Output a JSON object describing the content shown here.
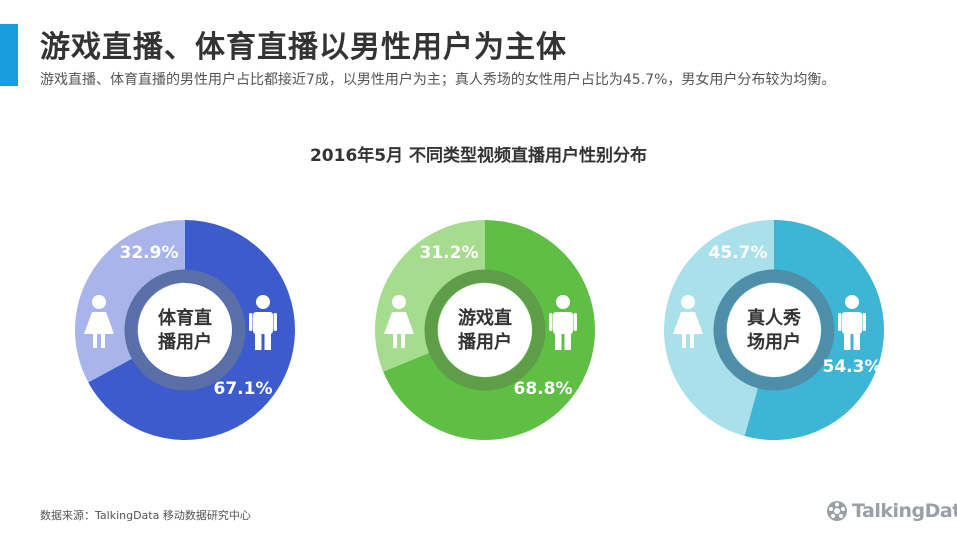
{
  "header": {
    "title": "游戏直播、体育直播以男性用户为主体",
    "subtitle": "游戏直播、体育直播的男性用户占比都接近7成，以男性用户为主；真人秀场的女性用户占比为45.7%，男女用户分布较为均衡。"
  },
  "footer": {
    "source": "数据来源：TalkingData 移动数据研究中心",
    "logo_text": "TalkingData"
  },
  "chart_data": {
    "title": "2016年5月  不同类型视频直播用户性别分布",
    "type": "pie",
    "charts": [
      {
        "label": [
          "体育直",
          "播用户"
        ],
        "slices": [
          {
            "name": "female",
            "value": 32.9,
            "label": "32.9%",
            "color": "#a9b5ea"
          },
          {
            "name": "male",
            "value": 67.1,
            "label": "67.1%",
            "color": "#3c5bcd"
          }
        ],
        "ring_color": "#5a6fa8"
      },
      {
        "label": [
          "游戏直",
          "播用户"
        ],
        "slices": [
          {
            "name": "female",
            "value": 31.2,
            "label": "31.2%",
            "color": "#a6dc8d"
          },
          {
            "name": "male",
            "value": 68.8,
            "label": "68.8%",
            "color": "#5fbf45"
          }
        ],
        "ring_color": "#5f9e48"
      },
      {
        "label": [
          "真人秀",
          "场用户"
        ],
        "slices": [
          {
            "name": "female",
            "value": 45.7,
            "label": "45.7%",
            "color": "#a9e0ea"
          },
          {
            "name": "male",
            "value": 54.3,
            "label": "54.3%",
            "color": "#3db6d6"
          }
        ],
        "ring_color": "#4f8ea8"
      }
    ]
  },
  "colors": {
    "accent": "#1a9de0",
    "icon_white": "#ffffff"
  }
}
